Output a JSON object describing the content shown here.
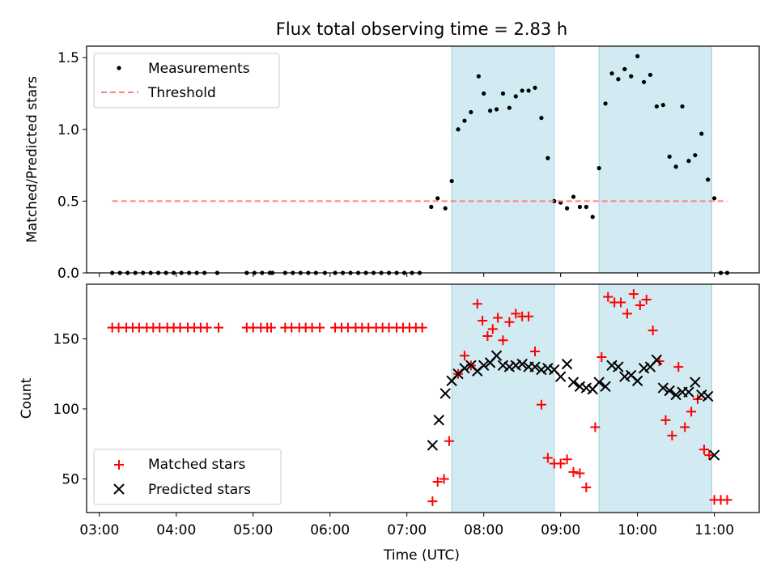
{
  "chart_data": [
    {
      "type": "scatter",
      "title": "Flux total observing time = 2.83 h",
      "xlabel": "",
      "ylabel": "Matched/Predicted stars",
      "xlim": [
        "02:50",
        "11:35"
      ],
      "ylim": [
        0,
        1.58
      ],
      "yticks": [
        "0.0",
        "0.5",
        "1.0",
        "1.5"
      ],
      "grid": false,
      "legend_position": "top-left",
      "shaded_intervals": [
        [
          "07:35",
          "08:55"
        ],
        [
          "09:30",
          "10:58"
        ]
      ],
      "shade_color": "#add8e6",
      "series": [
        {
          "name": "Measurements",
          "marker": "dot",
          "color": "#000000",
          "points": [
            [
              "03:10",
              0
            ],
            [
              "03:16",
              0
            ],
            [
              "03:22",
              0
            ],
            [
              "03:28",
              0
            ],
            [
              "03:34",
              0
            ],
            [
              "03:40",
              0
            ],
            [
              "03:46",
              0
            ],
            [
              "03:52",
              0
            ],
            [
              "03:58",
              0
            ],
            [
              "04:04",
              0
            ],
            [
              "04:10",
              0
            ],
            [
              "04:16",
              0
            ],
            [
              "04:22",
              0
            ],
            [
              "04:32",
              0
            ],
            [
              "04:55",
              0
            ],
            [
              "05:01",
              0
            ],
            [
              "05:07",
              0
            ],
            [
              "05:13",
              0
            ],
            [
              "05:15",
              0
            ],
            [
              "05:25",
              0
            ],
            [
              "05:31",
              0
            ],
            [
              "05:37",
              0
            ],
            [
              "05:43",
              0
            ],
            [
              "05:49",
              0
            ],
            [
              "05:56",
              0
            ],
            [
              "06:04",
              0
            ],
            [
              "06:10",
              0
            ],
            [
              "06:16",
              0
            ],
            [
              "06:22",
              0
            ],
            [
              "06:28",
              0
            ],
            [
              "06:34",
              0
            ],
            [
              "06:40",
              0
            ],
            [
              "06:46",
              0
            ],
            [
              "06:52",
              0
            ],
            [
              "06:58",
              0
            ],
            [
              "07:04",
              0
            ],
            [
              "07:10",
              0
            ],
            [
              "07:19",
              0.46
            ],
            [
              "07:24",
              0.52
            ],
            [
              "07:30",
              0.45
            ],
            [
              "07:35",
              0.64
            ],
            [
              "07:40",
              1.0
            ],
            [
              "07:45",
              1.06
            ],
            [
              "07:50",
              1.12
            ],
            [
              "07:56",
              1.37
            ],
            [
              "08:00",
              1.25
            ],
            [
              "08:05",
              1.13
            ],
            [
              "08:10",
              1.14
            ],
            [
              "08:15",
              1.25
            ],
            [
              "08:20",
              1.15
            ],
            [
              "08:25",
              1.23
            ],
            [
              "08:30",
              1.27
            ],
            [
              "08:35",
              1.27
            ],
            [
              "08:40",
              1.29
            ],
            [
              "08:45",
              1.08
            ],
            [
              "08:50",
              0.8
            ],
            [
              "08:55",
              0.5
            ],
            [
              "09:00",
              0.49
            ],
            [
              "09:05",
              0.45
            ],
            [
              "09:10",
              0.53
            ],
            [
              "09:15",
              0.46
            ],
            [
              "09:20",
              0.46
            ],
            [
              "09:25",
              0.39
            ],
            [
              "09:30",
              0.73
            ],
            [
              "09:35",
              1.18
            ],
            [
              "09:40",
              1.39
            ],
            [
              "09:45",
              1.35
            ],
            [
              "09:50",
              1.42
            ],
            [
              "09:55",
              1.37
            ],
            [
              "10:00",
              1.51
            ],
            [
              "10:05",
              1.33
            ],
            [
              "10:10",
              1.38
            ],
            [
              "10:15",
              1.16
            ],
            [
              "10:20",
              1.17
            ],
            [
              "10:25",
              0.81
            ],
            [
              "10:30",
              0.74
            ],
            [
              "10:35",
              1.16
            ],
            [
              "10:40",
              0.78
            ],
            [
              "10:45",
              0.82
            ],
            [
              "10:50",
              0.97
            ],
            [
              "10:55",
              0.65
            ],
            [
              "11:00",
              0.52
            ],
            [
              "11:05",
              0
            ],
            [
              "11:10",
              0
            ]
          ]
        },
        {
          "name": "Threshold",
          "marker": "dashed-line",
          "color": "#ff8080",
          "points": [
            [
              "03:10",
              0.5
            ],
            [
              "11:10",
              0.5
            ]
          ]
        }
      ]
    },
    {
      "type": "scatter",
      "title": "",
      "xlabel": "Time (UTC)",
      "ylabel": "Count",
      "xlim": [
        "02:50",
        "11:35"
      ],
      "ylim": [
        26,
        189
      ],
      "xticks": [
        "03:00",
        "04:00",
        "05:00",
        "06:00",
        "07:00",
        "08:00",
        "09:00",
        "10:00",
        "11:00"
      ],
      "yticks": [
        "50",
        "100",
        "150"
      ],
      "grid": false,
      "legend_position": "bottom-left",
      "shaded_intervals": [
        [
          "07:35",
          "08:55"
        ],
        [
          "09:30",
          "10:58"
        ]
      ],
      "shade_color": "#add8e6",
      "series": [
        {
          "name": "Matched stars",
          "marker": "plus",
          "color": "#ff0000",
          "points": [
            [
              "03:10",
              158
            ],
            [
              "03:15",
              158
            ],
            [
              "03:21",
              158
            ],
            [
              "03:26",
              158
            ],
            [
              "03:31",
              158
            ],
            [
              "03:37",
              158
            ],
            [
              "03:42",
              158
            ],
            [
              "03:47",
              158
            ],
            [
              "03:53",
              158
            ],
            [
              "03:58",
              158
            ],
            [
              "04:03",
              158
            ],
            [
              "04:09",
              158
            ],
            [
              "04:14",
              158
            ],
            [
              "04:19",
              158
            ],
            [
              "04:24",
              158
            ],
            [
              "04:33",
              158
            ],
            [
              "04:55",
              158
            ],
            [
              "05:00",
              158
            ],
            [
              "05:06",
              158
            ],
            [
              "05:11",
              158
            ],
            [
              "05:14",
              158
            ],
            [
              "05:25",
              158
            ],
            [
              "05:30",
              158
            ],
            [
              "05:36",
              158
            ],
            [
              "05:41",
              158
            ],
            [
              "05:46",
              158
            ],
            [
              "05:52",
              158
            ],
            [
              "06:04",
              158
            ],
            [
              "06:09",
              158
            ],
            [
              "06:14",
              158
            ],
            [
              "06:20",
              158
            ],
            [
              "06:25",
              158
            ],
            [
              "06:30",
              158
            ],
            [
              "06:36",
              158
            ],
            [
              "06:41",
              158
            ],
            [
              "06:46",
              158
            ],
            [
              "06:52",
              158
            ],
            [
              "06:57",
              158
            ],
            [
              "07:02",
              158
            ],
            [
              "07:07",
              158
            ],
            [
              "07:12",
              158
            ],
            [
              "07:20",
              34
            ],
            [
              "07:24",
              48
            ],
            [
              "07:29",
              50
            ],
            [
              "07:33",
              77
            ],
            [
              "07:40",
              125
            ],
            [
              "07:45",
              138
            ],
            [
              "07:50",
              131
            ],
            [
              "07:55",
              175
            ],
            [
              "07:59",
              163
            ],
            [
              "08:03",
              152
            ],
            [
              "08:07",
              157
            ],
            [
              "08:11",
              165
            ],
            [
              "08:15",
              149
            ],
            [
              "08:20",
              162
            ],
            [
              "08:25",
              168
            ],
            [
              "08:30",
              166
            ],
            [
              "08:35",
              166
            ],
            [
              "08:40",
              141
            ],
            [
              "08:45",
              103
            ],
            [
              "08:50",
              65
            ],
            [
              "08:55",
              61
            ],
            [
              "09:00",
              61
            ],
            [
              "09:05",
              64
            ],
            [
              "09:10",
              55
            ],
            [
              "09:15",
              54
            ],
            [
              "09:20",
              44
            ],
            [
              "09:27",
              87
            ],
            [
              "09:32",
              137
            ],
            [
              "09:37",
              180
            ],
            [
              "09:42",
              176
            ],
            [
              "09:47",
              176
            ],
            [
              "09:52",
              168
            ],
            [
              "09:57",
              182
            ],
            [
              "10:02",
              174
            ],
            [
              "10:07",
              178
            ],
            [
              "10:12",
              156
            ],
            [
              "10:17",
              134
            ],
            [
              "10:22",
              92
            ],
            [
              "10:27",
              81
            ],
            [
              "10:32",
              130
            ],
            [
              "10:37",
              87
            ],
            [
              "10:42",
              98
            ],
            [
              "10:47",
              107
            ],
            [
              "10:52",
              71
            ],
            [
              "10:56",
              67
            ],
            [
              "11:00",
              35
            ],
            [
              "11:05",
              35
            ],
            [
              "11:10",
              35
            ]
          ]
        },
        {
          "name": "Predicted stars",
          "marker": "x",
          "color": "#000000",
          "points": [
            [
              "07:20",
              74
            ],
            [
              "07:25",
              92
            ],
            [
              "07:30",
              111
            ],
            [
              "07:35",
              120
            ],
            [
              "07:40",
              125
            ],
            [
              "07:45",
              129
            ],
            [
              "07:50",
              131
            ],
            [
              "07:55",
              127
            ],
            [
              "08:00",
              131
            ],
            [
              "08:05",
              133
            ],
            [
              "08:10",
              138
            ],
            [
              "08:15",
              131
            ],
            [
              "08:20",
              130
            ],
            [
              "08:25",
              131
            ],
            [
              "08:30",
              132
            ],
            [
              "08:35",
              130
            ],
            [
              "08:40",
              130
            ],
            [
              "08:45",
              128
            ],
            [
              "08:50",
              129
            ],
            [
              "08:55",
              128
            ],
            [
              "09:00",
              123
            ],
            [
              "09:05",
              132
            ],
            [
              "09:10",
              119
            ],
            [
              "09:15",
              116
            ],
            [
              "09:20",
              115
            ],
            [
              "09:25",
              114
            ],
            [
              "09:30",
              119
            ],
            [
              "09:35",
              116
            ],
            [
              "09:40",
              131
            ],
            [
              "09:45",
              130
            ],
            [
              "09:50",
              123
            ],
            [
              "09:55",
              124
            ],
            [
              "10:00",
              120
            ],
            [
              "10:05",
              129
            ],
            [
              "10:10",
              130
            ],
            [
              "10:15",
              135
            ],
            [
              "10:20",
              115
            ],
            [
              "10:25",
              113
            ],
            [
              "10:30",
              110
            ],
            [
              "10:35",
              112
            ],
            [
              "10:40",
              112
            ],
            [
              "10:45",
              119
            ],
            [
              "10:50",
              110
            ],
            [
              "10:55",
              109
            ],
            [
              "11:00",
              67
            ]
          ]
        }
      ]
    }
  ]
}
